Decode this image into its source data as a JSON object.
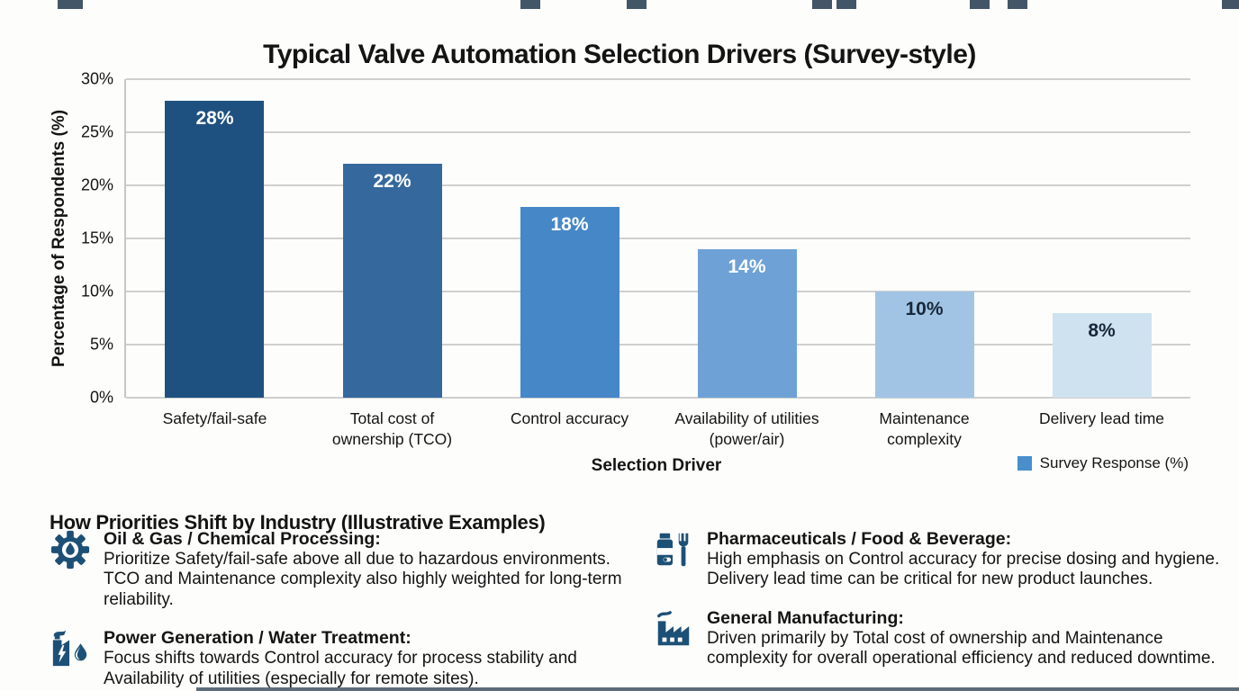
{
  "chart_data": {
    "type": "bar",
    "title": "Typical Valve Automation Selection Drivers (Survey-style)",
    "categories": [
      "Safety/fail-safe",
      "Total cost of ownership (TCO)",
      "Control accuracy",
      "Availability of utilities (power/air)",
      "Maintenance complexity",
      "Delivery lead time"
    ],
    "category_lines": [
      [
        "Safety/fail-safe"
      ],
      [
        "Total cost of",
        "ownership (TCO)"
      ],
      [
        "Control accuracy"
      ],
      [
        "Availability of utilities",
        "(power/air)"
      ],
      [
        "Maintenance",
        "complexity"
      ],
      [
        "Delivery lead time"
      ]
    ],
    "values": [
      28,
      22,
      18,
      14,
      10,
      8
    ],
    "value_labels": [
      "28%",
      "22%",
      "18%",
      "14%",
      "10%",
      "8%"
    ],
    "bar_colors": [
      "#1f5180",
      "#35699e",
      "#4587c7",
      "#6ea2d6",
      "#a2c4e4",
      "#cfe2f0"
    ],
    "value_label_colors": [
      "#ffffff",
      "#ffffff",
      "#ffffff",
      "#ffffff",
      "#16283a",
      "#16283a"
    ],
    "xlabel": "Selection Driver",
    "ylabel": "Percentage of Respondents (%)",
    "ylim": [
      0,
      30
    ],
    "yticks": [
      "0%",
      "5%",
      "10%",
      "15%",
      "20%",
      "25%",
      "30%"
    ],
    "grid": true,
    "legend": {
      "label": "Survey Response (%)",
      "color": "#4a8fcb",
      "position": "bottom-right"
    }
  },
  "industry": {
    "heading": "How Priorities Shift by Industry (Illustrative Examples)",
    "icon_color": "#1d5076",
    "items": [
      {
        "icon": "gear-droplet-icon",
        "title": "Oil & Gas / Chemical Processing:",
        "text": "Prioritize Safety/fail-safe above all due to hazardous environments. TCO and Maintenance complexity also highly weighted for long-term reliability."
      },
      {
        "icon": "power-plant-icon",
        "title": "Power Generation / Water Treatment:",
        "text": "Focus shifts towards Control accuracy for process stability and Availability of utilities (especially for remote sites)."
      },
      {
        "icon": "pharma-food-icon",
        "title": "Pharmaceuticals / Food & Beverage:",
        "text": "High emphasis on Control accuracy for precise dosing and hygiene. Delivery lead time can be critical for new product launches."
      },
      {
        "icon": "factory-icon",
        "title": "General Manufacturing:",
        "text": "Driven primarily by Total cost of ownership and Maintenance complexity for overall operational efficiency and reduced downtime."
      }
    ]
  }
}
